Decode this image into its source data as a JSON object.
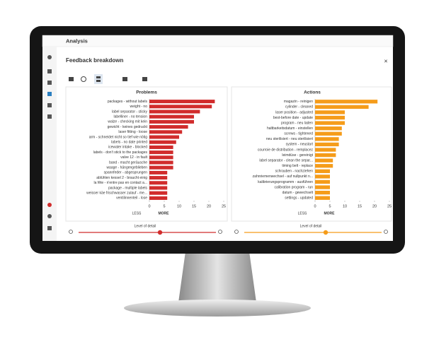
{
  "app": {
    "title": "Analysis"
  },
  "panel": {
    "title": "Feedback breakdown"
  },
  "chart_data": [
    {
      "type": "bar",
      "title": "Problems",
      "color": "#d12c2c",
      "categories": [
        "packages - without labels",
        "weight - no",
        "label separator - sticky",
        "labelliner - no tension",
        "walze - checking mit kein",
        "gewicht - keines gedruckt",
        "laser fitting - loose",
        "arm - schneidet nicht so tief wie nötig",
        "labels - no date printed",
        "icewater intake - blocked",
        "labels - don't stick to the packages",
        "valve 12 - in fault",
        "band - macht geräusche",
        "waage - hängengeblieben",
        "spannfeder - abgesprungen",
        "ablühlen kessel 2 - braucht einig",
        "la fête - n'entre pas en contact a...",
        "package - multiple labels",
        "weisser käe frischwasser zulauf - me...",
        "ventilinnenteil - lose"
      ],
      "values": [
        22,
        21,
        17,
        15,
        15,
        13,
        11,
        10,
        9,
        8,
        8,
        8,
        8,
        8,
        6,
        6,
        6,
        6,
        6,
        6
      ],
      "xlim": [
        0,
        25
      ],
      "xticks": [
        0,
        5,
        10,
        15,
        20,
        25
      ],
      "less": "LESS",
      "more": "MORE",
      "detail": "Level of detail"
    },
    {
      "type": "bar",
      "title": "Actions",
      "color": "#f59c1a",
      "categories": [
        "magazin - reinigen",
        "cylinder - cleaned",
        "laser position - adjusted",
        "best-before date - update",
        "program - neu laden",
        "haltbarkeitsdatum - einstellen",
        "screws - tightened",
        "neu sterilisiert - neu sterilisiert",
        "system - neustart",
        "courroie de distribution - remplacez",
        "leimdüse - gereinigt",
        "label separator - clean the separ...",
        "timing belt - replace",
        "schrauben - nachziehen",
        "zahnriemenwechsel - auf nullpunkt n...",
        "kalibrierungsprogramm - ausführen",
        "calibration program - run",
        "datum - gewechselt",
        "settings - updated"
      ],
      "values": [
        21,
        18,
        10,
        10,
        10,
        9,
        9,
        8,
        8,
        7,
        7,
        6,
        6,
        5,
        5,
        5,
        5,
        5,
        5
      ],
      "xlim": [
        0,
        25
      ],
      "xticks": [
        0,
        5,
        10,
        15,
        20,
        25
      ],
      "less": "LESS",
      "more": "MORE",
      "detail": "Level of detail"
    }
  ]
}
